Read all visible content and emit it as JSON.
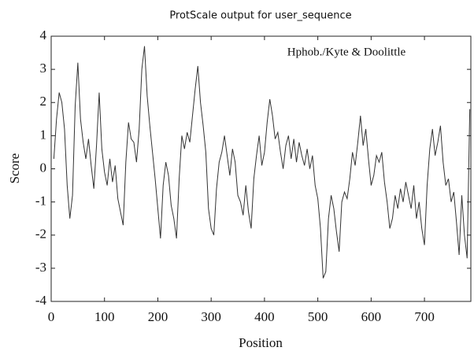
{
  "chart_data": {
    "type": "line",
    "title": "ProtScale output for user_sequence",
    "annotation": "Hphob./Kyte & Doolittle",
    "xlabel": "Position",
    "ylabel": "Score",
    "xlim": [
      0,
      787
    ],
    "ylim": [
      -4,
      4
    ],
    "xticks": [
      0,
      100,
      200,
      300,
      400,
      500,
      600,
      700
    ],
    "yticks": [
      -4,
      -3,
      -2,
      -1,
      0,
      1,
      2,
      3,
      4
    ],
    "grid": false,
    "series": [
      {
        "name": "Hphob./Kyte & Doolittle",
        "color": "#333333",
        "x": [
          5,
          10,
          15,
          20,
          25,
          30,
          35,
          40,
          45,
          50,
          55,
          60,
          65,
          70,
          75,
          80,
          85,
          90,
          95,
          100,
          105,
          110,
          115,
          120,
          125,
          130,
          135,
          140,
          145,
          150,
          155,
          160,
          165,
          170,
          175,
          180,
          185,
          190,
          195,
          200,
          205,
          210,
          215,
          220,
          225,
          230,
          235,
          240,
          245,
          250,
          255,
          260,
          265,
          270,
          275,
          280,
          285,
          290,
          295,
          300,
          305,
          310,
          315,
          320,
          325,
          330,
          335,
          340,
          345,
          350,
          355,
          360,
          365,
          370,
          375,
          380,
          385,
          390,
          395,
          400,
          405,
          410,
          415,
          420,
          425,
          430,
          435,
          440,
          445,
          450,
          455,
          460,
          465,
          470,
          475,
          480,
          485,
          490,
          495,
          500,
          505,
          510,
          515,
          520,
          525,
          530,
          535,
          540,
          545,
          550,
          555,
          560,
          565,
          570,
          575,
          580,
          585,
          590,
          595,
          600,
          605,
          610,
          615,
          620,
          625,
          630,
          635,
          640,
          645,
          650,
          655,
          660,
          665,
          670,
          675,
          680,
          685,
          690,
          695,
          700,
          705,
          710,
          715,
          720,
          725,
          730,
          735,
          740,
          745,
          750,
          755,
          760,
          765,
          770,
          775,
          780,
          785
        ],
        "values": [
          0.3,
          1.5,
          2.3,
          2.0,
          1.2,
          -0.5,
          -1.5,
          -0.8,
          1.9,
          3.2,
          1.5,
          0.8,
          0.3,
          0.9,
          0.1,
          -0.6,
          0.7,
          2.3,
          0.6,
          -0.1,
          -0.5,
          0.3,
          -0.4,
          0.1,
          -0.9,
          -1.3,
          -1.7,
          0.2,
          1.4,
          0.9,
          0.8,
          0.2,
          1.2,
          3.0,
          3.7,
          2.2,
          1.3,
          0.5,
          -0.3,
          -1.2,
          -2.1,
          -0.5,
          0.2,
          -0.2,
          -1.1,
          -1.5,
          -2.1,
          -0.3,
          1.0,
          0.6,
          1.1,
          0.8,
          1.6,
          2.4,
          3.1,
          2.0,
          1.3,
          0.5,
          -1.2,
          -1.8,
          -2.0,
          -0.6,
          0.2,
          0.5,
          1.0,
          0.4,
          -0.2,
          0.6,
          0.2,
          -0.8,
          -1.0,
          -1.4,
          -0.5,
          -1.3,
          -1.8,
          -0.3,
          0.4,
          1.0,
          0.1,
          0.5,
          1.4,
          2.1,
          1.6,
          0.9,
          1.1,
          0.5,
          0.0,
          0.7,
          1.0,
          0.3,
          0.9,
          0.2,
          0.8,
          0.4,
          0.1,
          0.6,
          0.0,
          0.4,
          -0.5,
          -0.9,
          -1.8,
          -3.3,
          -3.1,
          -1.5,
          -0.8,
          -1.2,
          -1.9,
          -2.5,
          -1.0,
          -0.7,
          -0.9,
          -0.3,
          0.5,
          0.1,
          0.8,
          1.6,
          0.7,
          1.2,
          0.3,
          -0.5,
          -0.2,
          0.4,
          0.2,
          0.5,
          -0.4,
          -1.0,
          -1.8,
          -1.5,
          -0.8,
          -1.2,
          -0.6,
          -1.0,
          -0.4,
          -0.8,
          -1.2,
          -0.5,
          -1.5,
          -1.0,
          -1.8,
          -2.3,
          -0.5,
          0.6,
          1.2,
          0.4,
          0.8,
          1.3,
          0.2,
          -0.5,
          -0.3,
          -1.0,
          -0.7,
          -1.6,
          -2.6,
          -0.8,
          -2.0,
          -2.7,
          1.8
        ]
      }
    ]
  }
}
